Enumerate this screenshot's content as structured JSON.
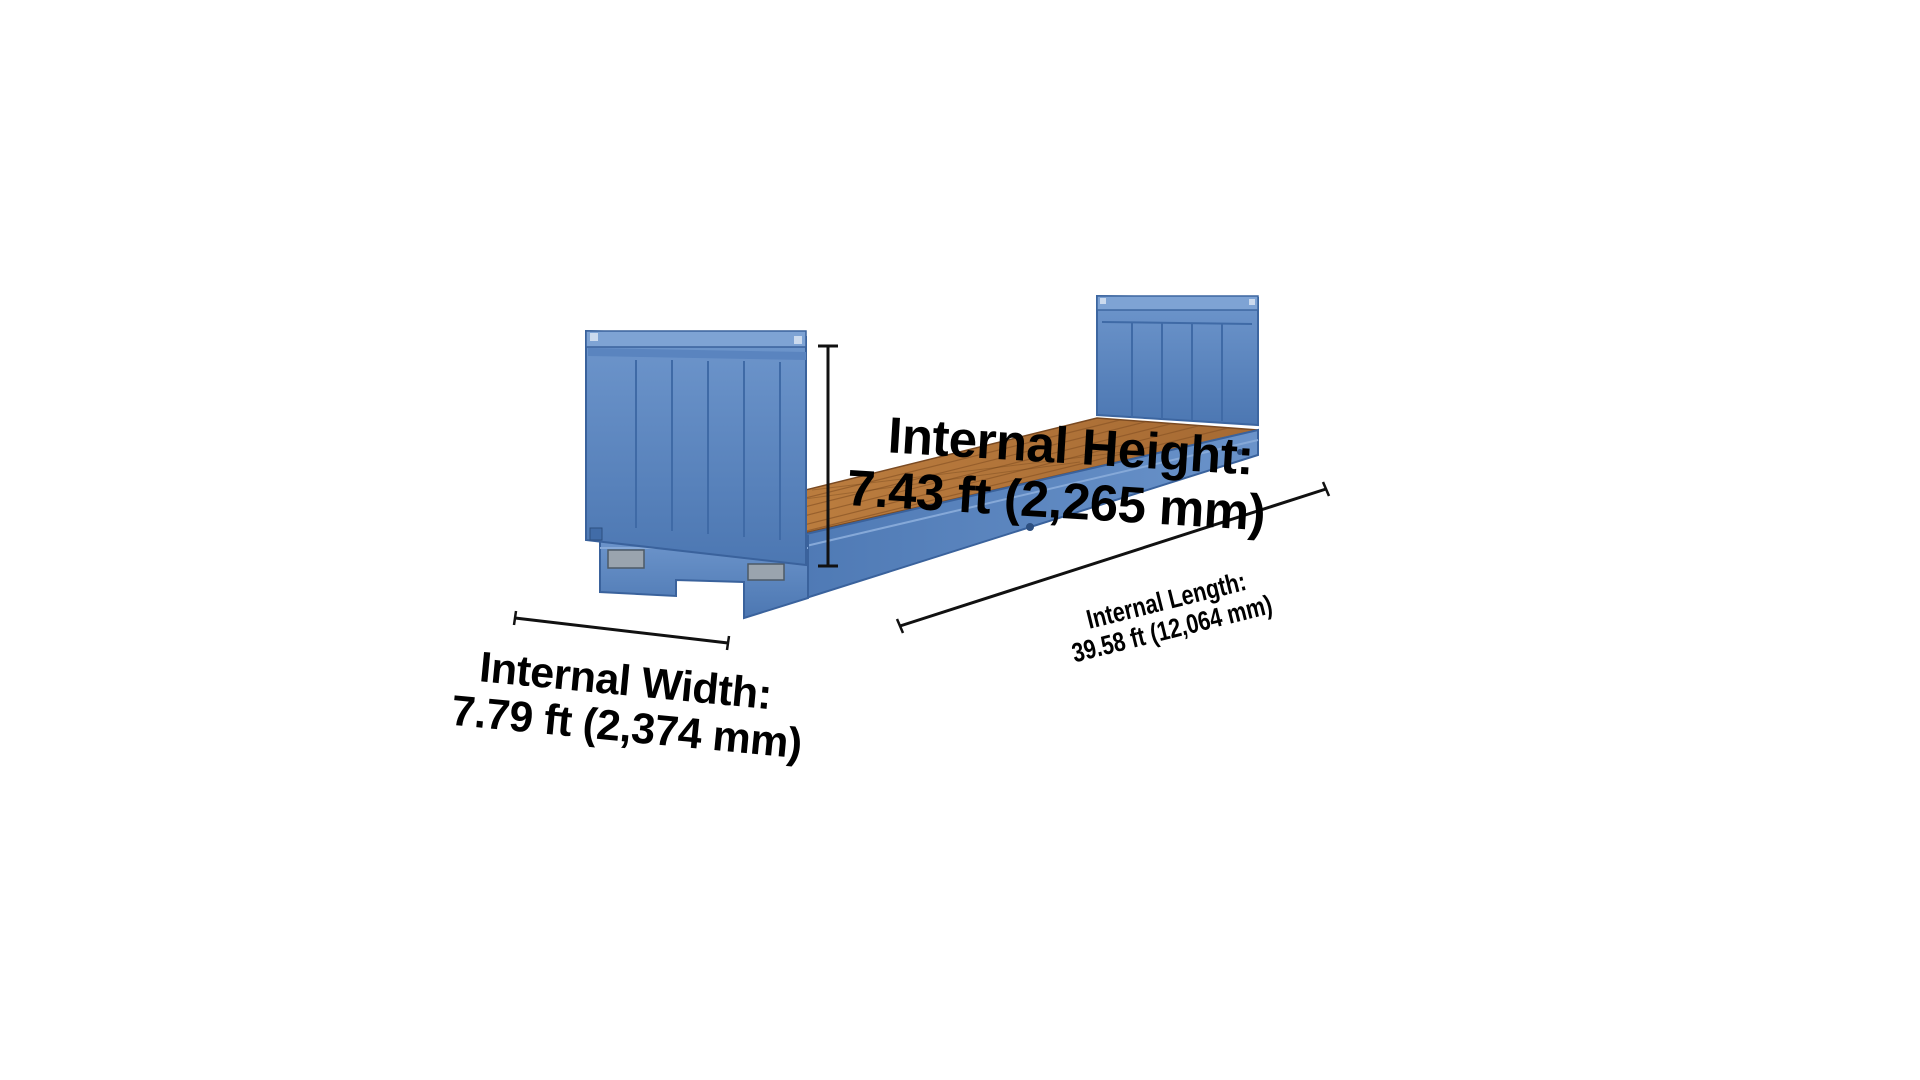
{
  "diagram": {
    "subject": "flat rack container",
    "colors": {
      "container_blue": "#5b86c0",
      "container_blue_dark": "#3f6aa6",
      "container_blue_light": "#7ea3d4",
      "deck_wood": "#b5773c",
      "deck_wood_dark": "#8a5526",
      "dimension_line": "#111111",
      "text": "#000000",
      "background": "#ffffff"
    },
    "height": {
      "title": "Internal Height:",
      "value": "7.43 ft  (2,265 mm)"
    },
    "width": {
      "title": "Internal Width:",
      "value": "7.79 ft (2,374 mm)"
    },
    "length": {
      "title": "Internal Length:",
      "value": "39.58 ft (12,064 mm)"
    }
  }
}
